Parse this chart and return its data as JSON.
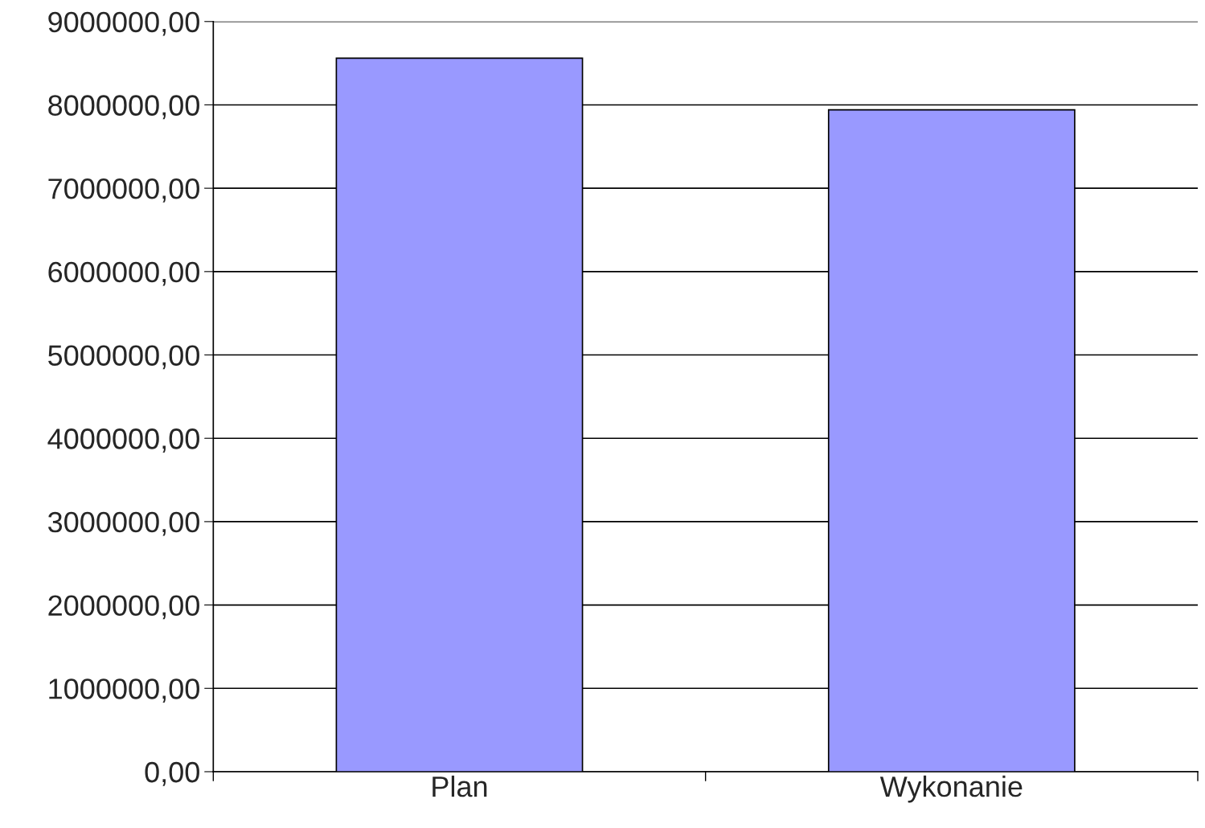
{
  "chart_data": {
    "type": "bar",
    "categories": [
      "Plan",
      "Wykonanie"
    ],
    "values": [
      8560000,
      7940000
    ],
    "color": "#9999ff",
    "ylim": [
      0,
      9000000
    ],
    "yticks": [
      {
        "value": 0,
        "label": "0,00"
      },
      {
        "value": 1000000,
        "label": "1000000,00"
      },
      {
        "value": 2000000,
        "label": "2000000,00"
      },
      {
        "value": 3000000,
        "label": "3000000,00"
      },
      {
        "value": 4000000,
        "label": "4000000,00"
      },
      {
        "value": 5000000,
        "label": "5000000,00"
      },
      {
        "value": 6000000,
        "label": "6000000,00"
      },
      {
        "value": 7000000,
        "label": "7000000,00"
      },
      {
        "value": 8000000,
        "label": "8000000,00"
      },
      {
        "value": 9000000,
        "label": "9000000,00"
      }
    ],
    "grid": "y"
  }
}
